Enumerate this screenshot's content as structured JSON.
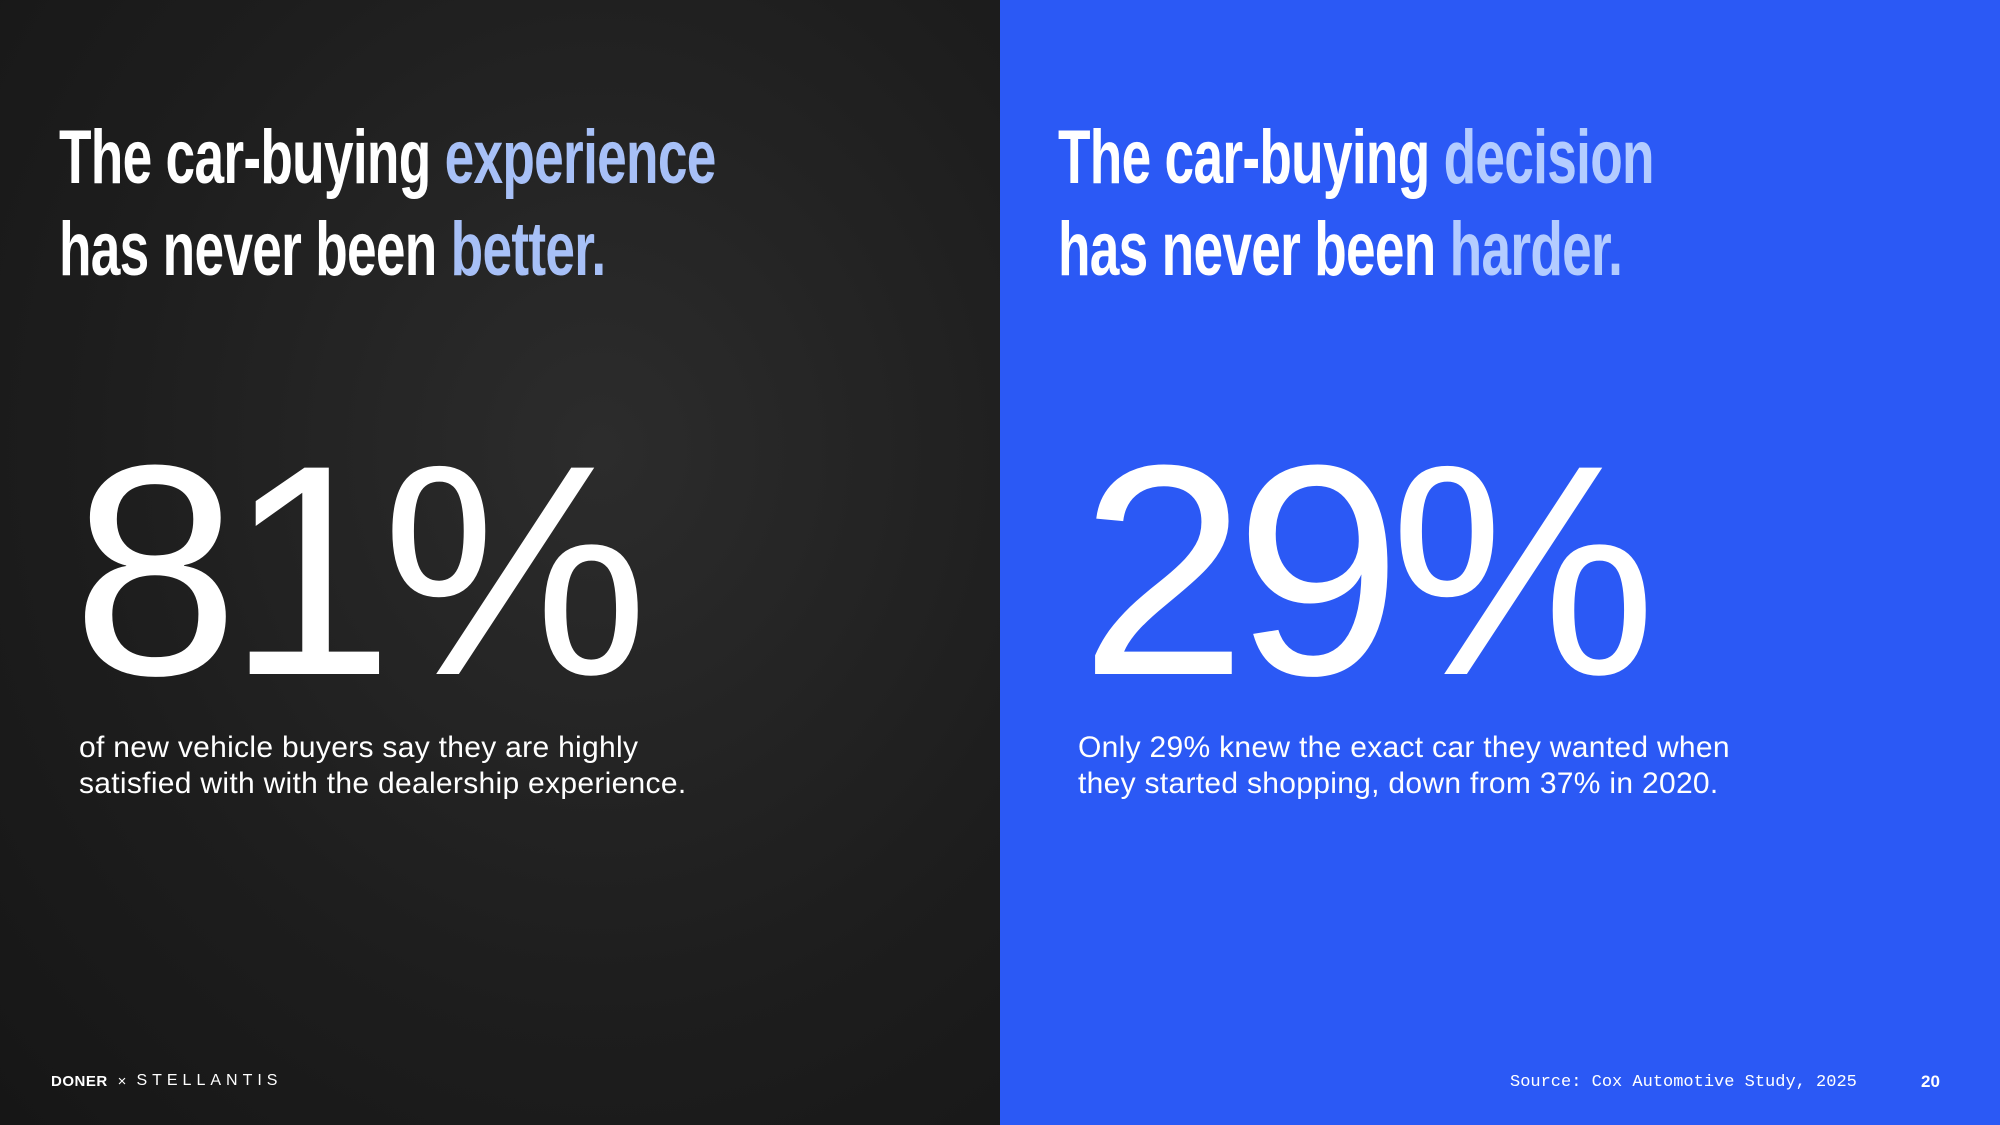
{
  "panels": [
    {
      "title": {
        "line1": {
          "plain": "The car-buying",
          "highlight": "experience"
        },
        "line2": {
          "plain": "has never been",
          "highlight": "better."
        }
      },
      "stat": "81%",
      "description": [
        "of new vehicle buyers say they are highly",
        "satisfied with with the dealership experience."
      ]
    },
    {
      "title": {
        "line1": {
          "plain": "The car-buying",
          "highlight": "decision"
        },
        "line2": {
          "plain": "has never been",
          "highlight": "harder."
        }
      },
      "stat": "29%",
      "description": [
        "Only 29% knew the exact car they wanted when",
        "they started shopping, down from 37% in 2020."
      ]
    }
  ],
  "footer": {
    "logo": {
      "brand": "DONER",
      "separator": "×",
      "partner": "STELLANTIS"
    },
    "source": "Source: Cox Automotive Study, 2025",
    "page_number": "20"
  }
}
